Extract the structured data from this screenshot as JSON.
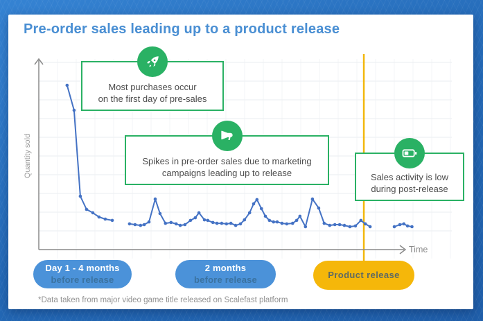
{
  "title": "Pre-order sales leading up to a product release",
  "colors": {
    "title_blue": "#4a8fd3",
    "line_blue": "#4472c4",
    "yellow": "#f2b70d",
    "green": "#2ab164",
    "pill_blue": "#4b92d9",
    "axis_gray": "#8a8a8a",
    "grid_gray": "#eaedf0"
  },
  "chart": {
    "y_axis_label": "Quantity sold",
    "x_axis_label": "Time",
    "annotations": [
      {
        "icon": "rocket-icon",
        "text_lines": [
          "Most purchases occur",
          "on the first day of pre-sales"
        ]
      },
      {
        "icon": "megaphone-icon",
        "text_lines": [
          "Spikes in pre-order sales due to marketing",
          "campaigns leading up to release"
        ]
      },
      {
        "icon": "battery-low-icon",
        "text_lines": [
          "Sales activity is low",
          "during post-release"
        ]
      }
    ]
  },
  "chart_data": {
    "type": "line",
    "title": "Pre-order sales leading up to a product release",
    "xlabel": "Time",
    "ylabel": "Quantity sold",
    "x_range": [
      0,
      100
    ],
    "y_range": [
      0,
      100
    ],
    "grid": true,
    "legend": "none",
    "event_line": {
      "label": "Product release",
      "x": 88.5
    },
    "series": [
      {
        "name": "Pre-order sales",
        "segments": [
          [
            [
              7.7,
              86.2
            ],
            [
              9.6,
              73.1
            ],
            [
              11.3,
              28.0
            ],
            [
              13.0,
              21.1
            ],
            [
              14.7,
              19.3
            ],
            [
              16.4,
              17.1
            ],
            [
              18.1,
              16.0
            ],
            [
              20.0,
              15.3
            ]
          ],
          [
            [
              24.7,
              13.5
            ],
            [
              26.2,
              13.1
            ],
            [
              27.7,
              12.7
            ],
            [
              28.7,
              13.1
            ],
            [
              30.0,
              14.5
            ],
            [
              31.7,
              26.5
            ],
            [
              33.0,
              18.9
            ],
            [
              34.5,
              13.8
            ],
            [
              36.0,
              14.2
            ],
            [
              37.4,
              13.5
            ],
            [
              38.5,
              12.7
            ],
            [
              39.8,
              13.1
            ],
            [
              41.3,
              15.3
            ],
            [
              42.6,
              16.7
            ],
            [
              43.6,
              19.3
            ],
            [
              45.1,
              15.6
            ],
            [
              46.0,
              15.3
            ],
            [
              47.4,
              14.2
            ],
            [
              48.5,
              13.8
            ],
            [
              49.8,
              13.8
            ],
            [
              51.1,
              13.5
            ],
            [
              52.3,
              13.8
            ],
            [
              53.6,
              12.7
            ],
            [
              54.9,
              13.5
            ],
            [
              56.0,
              15.6
            ],
            [
              57.4,
              19.3
            ],
            [
              58.5,
              24.0
            ],
            [
              59.4,
              26.2
            ],
            [
              60.6,
              21.5
            ],
            [
              61.7,
              17.5
            ],
            [
              62.8,
              15.3
            ],
            [
              63.9,
              14.5
            ],
            [
              64.9,
              14.5
            ],
            [
              66.2,
              13.8
            ],
            [
              67.5,
              13.5
            ],
            [
              69.1,
              13.8
            ],
            [
              70.2,
              15.3
            ],
            [
              71.1,
              17.5
            ],
            [
              72.6,
              12.0
            ],
            [
              74.5,
              26.5
            ],
            [
              76.2,
              21.8
            ],
            [
              77.7,
              13.8
            ],
            [
              79.2,
              12.7
            ],
            [
              80.6,
              13.1
            ],
            [
              81.9,
              13.1
            ],
            [
              83.2,
              12.7
            ],
            [
              84.7,
              12.0
            ],
            [
              86.2,
              12.4
            ],
            [
              87.7,
              15.3
            ],
            [
              88.9,
              13.5
            ],
            [
              90.2,
              12.0
            ]
          ],
          [
            [
              96.8,
              12.0
            ],
            [
              98.3,
              13.1
            ],
            [
              99.4,
              13.5
            ],
            [
              100.4,
              12.4
            ],
            [
              101.6,
              12.0
            ]
          ]
        ]
      }
    ]
  },
  "timeline": [
    {
      "label_lines": [
        "Day 1 - 4 months",
        "before release"
      ],
      "style": "blue"
    },
    {
      "label_lines": [
        "2 months",
        "before release"
      ],
      "style": "blue"
    },
    {
      "label_lines": [
        "Product release"
      ],
      "style": "yellow"
    }
  ],
  "footnote": "*Data taken from major video game title released on Scalefast platform"
}
